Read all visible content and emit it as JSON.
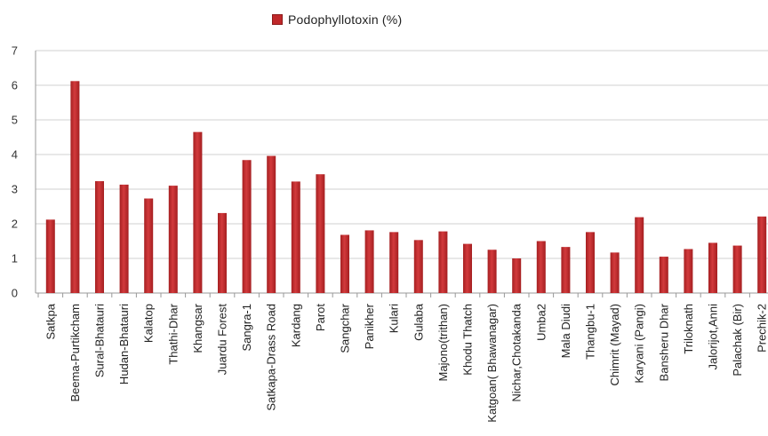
{
  "chart_data": {
    "type": "bar",
    "categories": [
      "Satkpa",
      "Beema-Purtikcham",
      "Sural-Bhatauri",
      "Hudan-Bhatauri",
      "Kalatop",
      "Thathi-Dhar",
      "Khangsar",
      "Juardu Forest",
      "Sangra-1",
      "Satkapa-Drass Road",
      "Kardang",
      "Parot",
      "Sangchar",
      "Panikher",
      "Kulari",
      "Gulaba",
      "Majono(trithan)",
      "Khodu Thatch",
      "Katgoan( Bhawanagar)",
      "Nichar,Chotakanda",
      "Umba2",
      "Mala Diudi",
      "Thangbu-1",
      "Chimrit (Mayad)",
      "Karyani (Pangi)",
      "Bansheru Dhar",
      "Triloknath",
      "Jalorijot,Anni",
      "Palachak (Bir)",
      "Prechik-2"
    ],
    "series": [
      {
        "name": "Podophyllotoxin (%)",
        "values": [
          2.12,
          6.12,
          3.23,
          3.13,
          2.73,
          3.1,
          4.65,
          2.31,
          3.84,
          3.96,
          3.22,
          3.43,
          1.68,
          1.81,
          1.76,
          1.53,
          1.78,
          1.42,
          1.25,
          1.0,
          1.5,
          1.33,
          1.76,
          1.17,
          2.19,
          1.05,
          1.27,
          1.45,
          1.37,
          2.21
        ]
      }
    ],
    "yticks": [
      "0",
      "1",
      "2",
      "3",
      "4",
      "5",
      "6",
      "7"
    ],
    "ylim": [
      0,
      7
    ],
    "grid": true,
    "legend_position": "top",
    "bar_color": "#c0282a"
  }
}
